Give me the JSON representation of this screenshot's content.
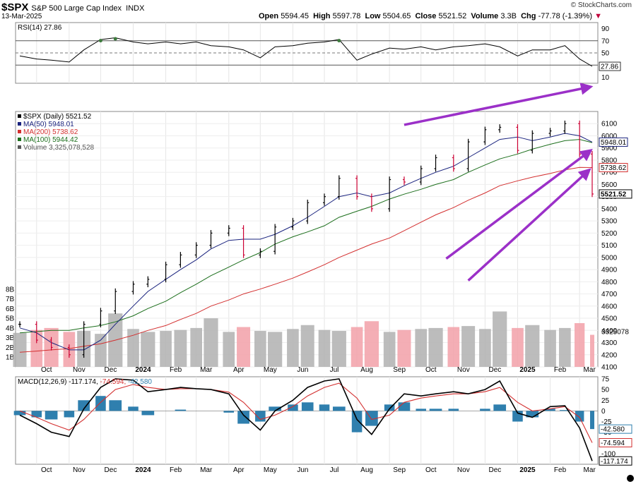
{
  "header": {
    "symbol": "$SPX",
    "name": "S&P 500 Large Cap Index",
    "exchange": "INDX",
    "date": "13-Mar-2025",
    "brand": "© StockCharts.com",
    "open_label": "Open",
    "open": "5594.45",
    "high_label": "High",
    "high": "5597.78",
    "low_label": "Low",
    "low": "5504.65",
    "close_label": "Close",
    "close": "5521.52",
    "volume_label": "Volume",
    "volume": "3.3B",
    "chg_label": "Chg",
    "chg": "-77.78 (-1.39%)"
  },
  "colors": {
    "up": "#000000",
    "down": "#cc0033",
    "ma50": "#1a237e",
    "ma200": "#d32f2f",
    "ma100": "#1b6e1b",
    "volume_up": "#b0b0b0",
    "volume_down": "#f2a0a8",
    "arrow": "#9b30c8",
    "macd": "#000000",
    "signal": "#d32f2f",
    "hist": "#2f7fae"
  },
  "chart_data": [
    {
      "type": "line",
      "panel": "rsi",
      "legend": "RSI(14) 27.86",
      "current_value": "27.86",
      "ylim": [
        0,
        100
      ],
      "tick_labels": [
        "90",
        "70",
        "50",
        "30",
        "10"
      ],
      "x": [
        "2023-09-15",
        "2023-10-01",
        "2023-10-15",
        "2023-11-01",
        "2023-11-15",
        "2023-12-01",
        "2023-12-15",
        "2024-01-01",
        "2024-01-15",
        "2024-02-01",
        "2024-02-15",
        "2024-03-01",
        "2024-03-15",
        "2024-04-01",
        "2024-04-15",
        "2024-05-01",
        "2024-05-15",
        "2024-06-01",
        "2024-06-15",
        "2024-07-01",
        "2024-07-15",
        "2024-08-01",
        "2024-08-15",
        "2024-09-01",
        "2024-09-15",
        "2024-10-01",
        "2024-10-15",
        "2024-11-01",
        "2024-11-15",
        "2024-12-01",
        "2024-12-15",
        "2025-01-01",
        "2025-01-15",
        "2025-02-01",
        "2025-02-15",
        "2025-03-01",
        "2025-03-13"
      ],
      "values": [
        45,
        40,
        38,
        35,
        55,
        72,
        75,
        68,
        65,
        68,
        65,
        68,
        62,
        60,
        55,
        42,
        60,
        62,
        66,
        68,
        72,
        38,
        48,
        58,
        56,
        60,
        55,
        60,
        62,
        65,
        60,
        45,
        55,
        55,
        62,
        40,
        27.86
      ]
    },
    {
      "type": "line",
      "panel": "price",
      "legend": [
        "$SPX (Daily) 5521.52",
        "MA(50) 5948.01",
        "MA(200) 5738.62",
        "MA(100) 5944.42",
        "Volume 3,325,078,528"
      ],
      "ylim": [
        4100,
        6200
      ],
      "tick_labels": [
        "6100",
        "6000",
        "5900",
        "5800",
        "5700",
        "5600",
        "5500",
        "5400",
        "5300",
        "5200",
        "5100",
        "5000",
        "4900",
        "4800",
        "4700",
        "4600",
        "4500",
        "4400",
        "4300",
        "4200",
        "4100"
      ],
      "x_tick_labels": [
        "Oct",
        "Nov",
        "Dec",
        "2024",
        "Feb",
        "Mar",
        "Apr",
        "May",
        "Jun",
        "Jul",
        "Aug",
        "Sep",
        "Oct",
        "Nov",
        "Dec",
        "2025",
        "Feb",
        "Mar"
      ],
      "x": [
        "2023-09-15",
        "2023-10-01",
        "2023-10-15",
        "2023-11-01",
        "2023-11-15",
        "2023-12-01",
        "2023-12-15",
        "2024-01-01",
        "2024-01-15",
        "2024-02-01",
        "2024-02-15",
        "2024-03-01",
        "2024-03-15",
        "2024-04-01",
        "2024-04-15",
        "2024-05-01",
        "2024-05-15",
        "2024-06-01",
        "2024-06-15",
        "2024-07-01",
        "2024-07-15",
        "2024-08-01",
        "2024-08-15",
        "2024-09-01",
        "2024-09-15",
        "2024-10-01",
        "2024-10-15",
        "2024-11-01",
        "2024-11-15",
        "2024-12-01",
        "2024-12-15",
        "2025-01-01",
        "2025-01-15",
        "2025-02-01",
        "2025-02-15",
        "2025-03-01",
        "2025-03-13"
      ],
      "series": [
        {
          "name": "$SPX (Daily) 5521.52",
          "values": [
            4450,
            4320,
            4260,
            4200,
            4450,
            4560,
            4720,
            4780,
            4820,
            4940,
            5020,
            5100,
            5200,
            5240,
            5020,
            5050,
            5250,
            5300,
            5450,
            5500,
            5650,
            5500,
            5400,
            5640,
            5620,
            5730,
            5820,
            5730,
            5950,
            6050,
            6070,
            5880,
            6020,
            6040,
            6100,
            5850,
            5521.52
          ]
        },
        {
          "name": "MA(50) 5948.01",
          "values": [
            4420,
            4380,
            4300,
            4240,
            4240,
            4320,
            4450,
            4600,
            4720,
            4820,
            4900,
            4980,
            5070,
            5140,
            5150,
            5150,
            5190,
            5260,
            5330,
            5420,
            5500,
            5530,
            5500,
            5530,
            5590,
            5650,
            5700,
            5750,
            5820,
            5900,
            5970,
            5990,
            5960,
            5990,
            6020,
            6000,
            5948.01
          ]
        },
        {
          "name": "MA(200) 5738.62",
          "values": [
            4220,
            4230,
            4240,
            4250,
            4270,
            4290,
            4320,
            4360,
            4400,
            4440,
            4490,
            4540,
            4600,
            4650,
            4700,
            4740,
            4780,
            4830,
            4880,
            4940,
            5000,
            5060,
            5110,
            5160,
            5220,
            5290,
            5350,
            5410,
            5470,
            5530,
            5590,
            5630,
            5660,
            5690,
            5720,
            5740,
            5738.62
          ]
        },
        {
          "name": "MA(100) 5944.42",
          "values": [
            4380,
            4390,
            4400,
            4400,
            4420,
            4440,
            4470,
            4520,
            4580,
            4640,
            4710,
            4780,
            4850,
            4920,
            4980,
            5040,
            5110,
            5170,
            5210,
            5260,
            5330,
            5380,
            5420,
            5480,
            5520,
            5560,
            5600,
            5640,
            5700,
            5760,
            5810,
            5850,
            5890,
            5930,
            5960,
            5970,
            5944.42
          ]
        }
      ],
      "volume_axis": {
        "tick_labels": [
          "8B",
          "7B",
          "6B",
          "5B",
          "4B",
          "3B",
          "2B",
          "1B"
        ],
        "ylim": [
          0,
          9
        ],
        "current_value": "3325078"
      },
      "volume_billions": [
        3.5,
        3.8,
        4.0,
        3.6,
        3.7,
        3.4,
        5.5,
        3.9,
        3.6,
        3.7,
        3.8,
        4.0,
        5.0,
        3.6,
        4.1,
        3.7,
        3.6,
        3.9,
        4.3,
        3.8,
        3.7,
        4.1,
        4.7,
        3.6,
        3.8,
        3.9,
        4.0,
        4.1,
        4.2,
        3.9,
        5.7,
        4.0,
        4.3,
        3.8,
        4.0,
        4.5,
        3.3
      ],
      "last_label": "5521.52",
      "ma50_label": "5948.01",
      "ma200_label": "5738.62",
      "annotations": "purple trend arrows"
    },
    {
      "type": "line",
      "panel": "macd",
      "legend_name": "MACD(12,26,9)",
      "legend_values": [
        "-117.174",
        "-74.594",
        "-42.580"
      ],
      "ylim": [
        -125,
        80
      ],
      "tick_labels": [
        "75",
        "50",
        "25",
        "0",
        "-25",
        "-50",
        "-75",
        "-100"
      ],
      "value_labels": [
        "-42.580",
        "-74.594",
        "-117.174"
      ],
      "x_tick_labels": [
        "Oct",
        "Nov",
        "Dec",
        "2024",
        "Feb",
        "Mar",
        "Apr",
        "May",
        "Jun",
        "Jul",
        "Aug",
        "Sep",
        "Oct",
        "Nov",
        "Dec",
        "2025",
        "Feb",
        "Mar"
      ],
      "x": [
        "2023-09-15",
        "2023-10-01",
        "2023-10-15",
        "2023-11-01",
        "2023-11-15",
        "2023-12-01",
        "2023-12-15",
        "2024-01-01",
        "2024-01-15",
        "2024-02-01",
        "2024-02-15",
        "2024-03-01",
        "2024-03-15",
        "2024-04-01",
        "2024-04-15",
        "2024-05-01",
        "2024-05-15",
        "2024-06-01",
        "2024-06-15",
        "2024-07-01",
        "2024-07-15",
        "2024-08-01",
        "2024-08-15",
        "2024-09-01",
        "2024-09-15",
        "2024-10-01",
        "2024-10-15",
        "2024-11-01",
        "2024-11-15",
        "2024-12-01",
        "2024-12-15",
        "2025-01-01",
        "2025-01-15",
        "2025-02-01",
        "2025-02-15",
        "2025-03-01",
        "2025-03-13"
      ],
      "series": [
        {
          "name": "MACD",
          "values": [
            -10,
            -30,
            -50,
            -60,
            5,
            55,
            75,
            72,
            45,
            50,
            55,
            52,
            50,
            40,
            -10,
            -45,
            0,
            25,
            55,
            70,
            75,
            -20,
            -55,
            5,
            40,
            35,
            40,
            45,
            40,
            50,
            70,
            -5,
            -15,
            10,
            12,
            -40,
            -117.174
          ]
        },
        {
          "name": "Signal",
          "values": [
            0,
            -15,
            -30,
            -45,
            -20,
            20,
            50,
            62,
            55,
            50,
            52,
            52,
            50,
            44,
            20,
            -20,
            -10,
            10,
            35,
            55,
            65,
            30,
            -20,
            -10,
            20,
            30,
            35,
            40,
            40,
            45,
            55,
            20,
            0,
            5,
            10,
            -15,
            -74.594
          ]
        },
        {
          "name": "Histogram",
          "values": [
            -10,
            -15,
            -20,
            -15,
            25,
            35,
            25,
            10,
            -10,
            0,
            3,
            0,
            0,
            -4,
            -30,
            -25,
            10,
            15,
            20,
            15,
            10,
            -50,
            -35,
            15,
            20,
            5,
            5,
            5,
            0,
            5,
            15,
            -25,
            -15,
            5,
            2,
            -25,
            -42.58
          ]
        }
      ]
    }
  ]
}
